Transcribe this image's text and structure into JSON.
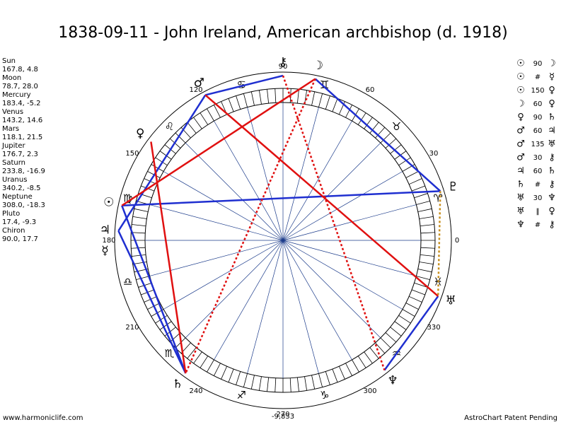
{
  "title": "1838-09-11 - John Ireland, American archbishop (d. 1918)",
  "planets": [
    {
      "name": "Sun",
      "position": "167.8, 4.8",
      "glyph": "☉"
    },
    {
      "name": "Moon",
      "position": "78.7, 28.0",
      "glyph": "☽"
    },
    {
      "name": "Mercury",
      "position": "183.4, -5.2",
      "glyph": "☿"
    },
    {
      "name": "Venus",
      "position": "143.2, 14.6",
      "glyph": "♀"
    },
    {
      "name": "Mars",
      "position": "118.1, 21.5",
      "glyph": "♂"
    },
    {
      "name": "Jupiter",
      "position": "176.7, 2.3",
      "glyph": "♃"
    },
    {
      "name": "Saturn",
      "position": "233.8, -16.9",
      "glyph": "♄"
    },
    {
      "name": "Uranus",
      "position": "340.2, -8.5",
      "glyph": "♅"
    },
    {
      "name": "Neptune",
      "position": "308.0, -18.3",
      "glyph": "♆"
    },
    {
      "name": "Pluto",
      "position": "17.4, -9.3",
      "glyph": "♇"
    },
    {
      "name": "Chiron",
      "position": "90.0, 17.7",
      "glyph": "⚷"
    }
  ],
  "aspects": [
    [
      "☉",
      "90",
      "☽"
    ],
    [
      "☉",
      "#",
      "☿"
    ],
    [
      "☉",
      "150",
      "♀"
    ],
    [
      "☽",
      "60",
      "♀"
    ],
    [
      "♀",
      "90",
      "♄"
    ],
    [
      "♂",
      "60",
      "♃"
    ],
    [
      "♂",
      "135",
      "♅"
    ],
    [
      "♂",
      "30",
      "⚷"
    ],
    [
      "♃",
      "60",
      "♄"
    ],
    [
      "♄",
      "#",
      "⚷"
    ],
    [
      "♅",
      "30",
      "♆"
    ],
    [
      "♅",
      "‖",
      "♀"
    ],
    [
      "♆",
      "#",
      "⚷"
    ]
  ],
  "signs": [
    "♈",
    "♉",
    "♊",
    "♋",
    "♌",
    "♍",
    "♎",
    "♏",
    "♐",
    "♑",
    "♒",
    "♓"
  ],
  "degree_labels": [
    0,
    30,
    60,
    90,
    120,
    150,
    180,
    210,
    240,
    270,
    300,
    330
  ],
  "bottom_value": "-9,833",
  "footer_left": "www.harmoniclife.com",
  "footer_right": "AstroChart Patent Pending"
}
